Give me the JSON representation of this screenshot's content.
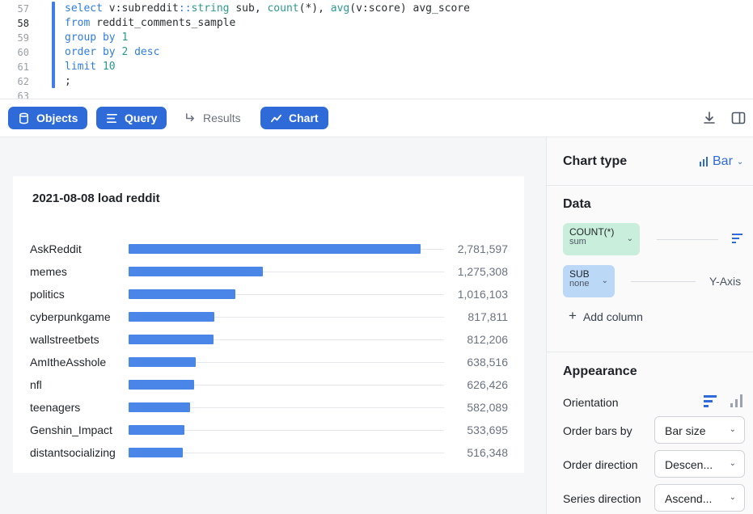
{
  "editor": {
    "line_numbers": [
      "57",
      "58",
      "59",
      "60",
      "61",
      "62",
      "63"
    ],
    "active_line": "58",
    "lines": [
      {
        "tokens": [
          {
            "t": "select",
            "c": "kw"
          },
          {
            "t": " v:subreddit"
          },
          {
            "t": "::",
            "c": "kw"
          },
          {
            "t": "string",
            "c": "fn"
          },
          {
            "t": " sub, "
          },
          {
            "t": "count",
            "c": "fn"
          },
          {
            "t": "(*), "
          },
          {
            "t": "avg",
            "c": "fn"
          },
          {
            "t": "(v:score) avg_score"
          }
        ]
      },
      {
        "tokens": [
          {
            "t": "from",
            "c": "kw"
          },
          {
            "t": " reddit_comments_sample"
          }
        ]
      },
      {
        "tokens": [
          {
            "t": "group by",
            "c": "kw"
          },
          {
            "t": " "
          },
          {
            "t": "1",
            "c": "num"
          }
        ]
      },
      {
        "tokens": [
          {
            "t": "order by",
            "c": "kw"
          },
          {
            "t": " "
          },
          {
            "t": "2",
            "c": "num"
          },
          {
            "t": " "
          },
          {
            "t": "desc",
            "c": "kw"
          }
        ]
      },
      {
        "tokens": [
          {
            "t": "limit",
            "c": "kw"
          },
          {
            "t": " "
          },
          {
            "t": "10",
            "c": "num"
          }
        ]
      },
      {
        "tokens": [
          {
            "t": ";"
          }
        ]
      }
    ]
  },
  "toolbar": {
    "objects_label": "Objects",
    "query_label": "Query",
    "results_label": "Results",
    "chart_label": "Chart",
    "accent": "#2f6bd8"
  },
  "chart_data": {
    "type": "bar",
    "title": "2021-08-08 load reddit",
    "orientation": "horizontal",
    "categories": [
      "AskReddit",
      "memes",
      "politics",
      "cyberpunkgame",
      "wallstreetbets",
      "AmItheAsshole",
      "nfl",
      "teenagers",
      "Genshin_Impact",
      "distantsocializing"
    ],
    "values": [
      2781597,
      1275308,
      1016103,
      817811,
      812206,
      638516,
      626426,
      582089,
      533695,
      516348
    ],
    "value_labels": [
      "2,781,597",
      "1,275,308",
      "1,016,103",
      "817,811",
      "812,206",
      "638,516",
      "626,426",
      "582,089",
      "533,695",
      "516,348"
    ],
    "xlim": [
      0,
      2781597
    ],
    "bar_color": "#4a86e8",
    "grid": false,
    "legend": "none"
  },
  "panel": {
    "chart_type_label": "Chart type",
    "chart_type_value": "Bar",
    "data_heading": "Data",
    "col1_name": "COUNT(*)",
    "col1_agg": "sum",
    "col1_color": "#c9efdc",
    "col2_name": "SUB",
    "col2_agg": "none",
    "col2_color": "#bcd8f7",
    "col2_axis": "Y-Axis",
    "add_column_label": "Add column",
    "appearance_heading": "Appearance",
    "orientation_label": "Orientation",
    "order_bars_label": "Order bars by",
    "order_bars_value": "Bar size",
    "order_direction_label": "Order direction",
    "order_direction_value": "Descen...",
    "series_direction_label": "Series direction",
    "series_direction_value": "Ascend..."
  }
}
